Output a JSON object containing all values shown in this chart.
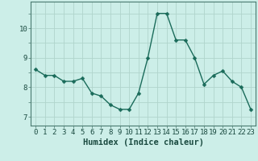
{
  "x": [
    0,
    1,
    2,
    3,
    4,
    5,
    6,
    7,
    8,
    9,
    10,
    11,
    12,
    13,
    14,
    15,
    16,
    17,
    18,
    19,
    20,
    21,
    22,
    23
  ],
  "y": [
    8.6,
    8.4,
    8.4,
    8.2,
    8.2,
    8.3,
    7.8,
    7.7,
    7.4,
    7.25,
    7.25,
    7.8,
    9.0,
    10.5,
    10.5,
    9.6,
    9.6,
    9.0,
    8.1,
    8.4,
    8.55,
    8.2,
    8.0,
    7.25
  ],
  "line_color": "#1a6b5a",
  "marker": "D",
  "marker_size": 2.5,
  "bg_color": "#cceee8",
  "grid_color_major": "#b0d4cc",
  "xlabel": "Humidex (Indice chaleur)",
  "ylim": [
    6.7,
    10.9
  ],
  "xlim": [
    -0.5,
    23.5
  ],
  "yticks": [
    7,
    8,
    9,
    10
  ],
  "xticks": [
    0,
    1,
    2,
    3,
    4,
    5,
    6,
    7,
    8,
    9,
    10,
    11,
    12,
    13,
    14,
    15,
    16,
    17,
    18,
    19,
    20,
    21,
    22,
    23
  ],
  "tick_fontsize": 6.5,
  "xlabel_fontsize": 7.5,
  "spine_color": "#4a7a70",
  "tick_color": "#1a4a40"
}
